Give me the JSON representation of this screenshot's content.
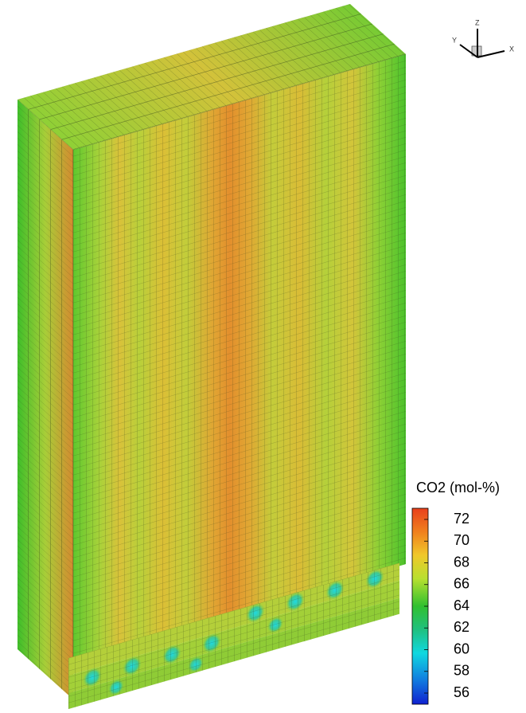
{
  "axes": {
    "z": "Z",
    "y": "Y",
    "x": "X"
  },
  "legend": {
    "title": "CO2 (mol-%)",
    "ticks": [
      72,
      70,
      68,
      66,
      64,
      62,
      60,
      58,
      56
    ]
  }
}
